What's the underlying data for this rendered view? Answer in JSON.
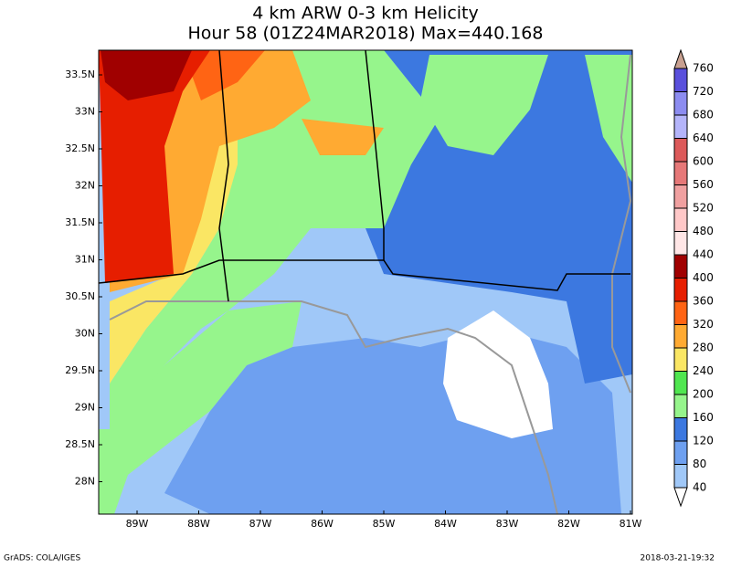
{
  "title": "4 km ARW 0-3 km Helicity",
  "subtitle": "Hour 58 (01Z24MAR2018) Max=440.168",
  "lat_labels": [
    "33.5N",
    "33N",
    "32.5N",
    "32N",
    "31.5N",
    "31N",
    "30.5N",
    "30N",
    "29.5N",
    "29N",
    "28.5N",
    "28N"
  ],
  "lon_labels": [
    "89W",
    "88W",
    "87W",
    "86W",
    "85W",
    "84W",
    "83W",
    "82W",
    "81W"
  ],
  "colorbar": {
    "levels": [
      40,
      80,
      120,
      160,
      200,
      240,
      280,
      320,
      360,
      400,
      440,
      480,
      520,
      560,
      600,
      640,
      680,
      720,
      760
    ],
    "colors": [
      "#ffffff",
      "#a0c8f8",
      "#6ea0f0",
      "#3c78e0",
      "#96f58c",
      "#50e650",
      "#fae664",
      "#ffaa32",
      "#ff6414",
      "#e61e00",
      "#a00000",
      "#ffe6e6",
      "#ffc8c8",
      "#f0a0a0",
      "#e67878",
      "#dc5a5a",
      "#b4b4fa",
      "#8c8cf0",
      "#5a50dc",
      "#c8a090"
    ]
  },
  "footer_left": "GrADS: COLA/IGES",
  "footer_right": "2018-03-21-19:32"
}
